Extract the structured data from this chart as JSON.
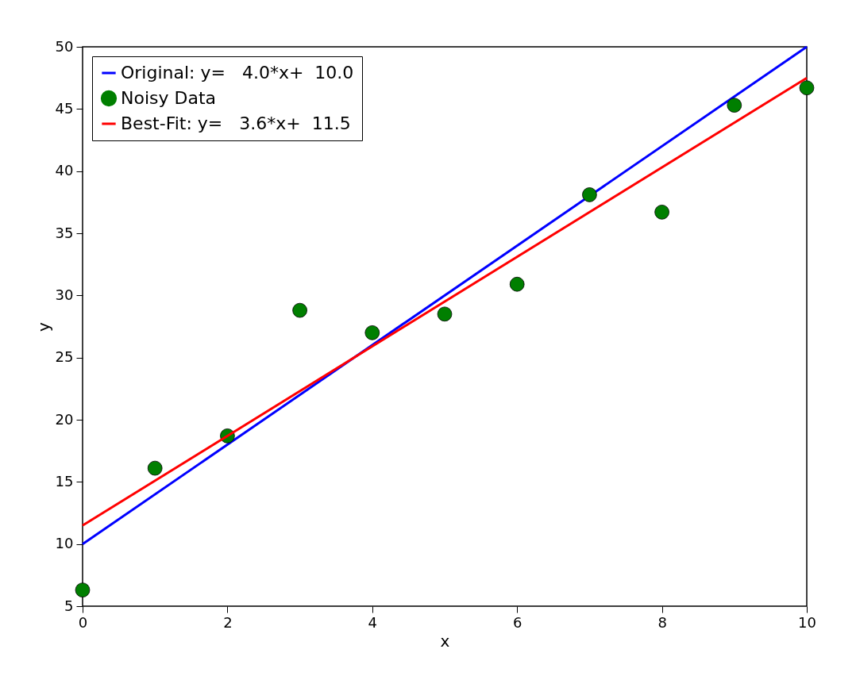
{
  "chart_data": {
    "type": "scatter",
    "xlabel": "x",
    "ylabel": "y",
    "xlim": [
      0,
      10
    ],
    "ylim": [
      5,
      50
    ],
    "xticks": [
      0,
      2,
      4,
      6,
      8,
      10
    ],
    "yticks": [
      5,
      10,
      15,
      20,
      25,
      30,
      35,
      40,
      45,
      50
    ],
    "grid": false,
    "legend": "top left",
    "series": [
      {
        "name": "Original: y=   4.0*x+  10.0",
        "type": "line",
        "color": "#0000ff",
        "line_style": "solid",
        "x": [
          0,
          10
        ],
        "values": [
          10,
          50
        ]
      },
      {
        "name": "Noisy Data",
        "color": "#007f00",
        "marker": "circle",
        "x": [
          0,
          1,
          2,
          3,
          4,
          5,
          6,
          7,
          8,
          9,
          10
        ],
        "values": [
          6.3,
          16.1,
          18.7,
          28.8,
          27.0,
          28.5,
          30.9,
          38.1,
          36.7,
          45.3,
          46.7
        ]
      },
      {
        "name": "Best-Fit: y=   3.6*x+  11.5",
        "type": "line",
        "color": "#ff0000",
        "line_style": "solid",
        "x": [
          0,
          10
        ],
        "values": [
          11.5,
          47.5
        ]
      }
    ]
  }
}
